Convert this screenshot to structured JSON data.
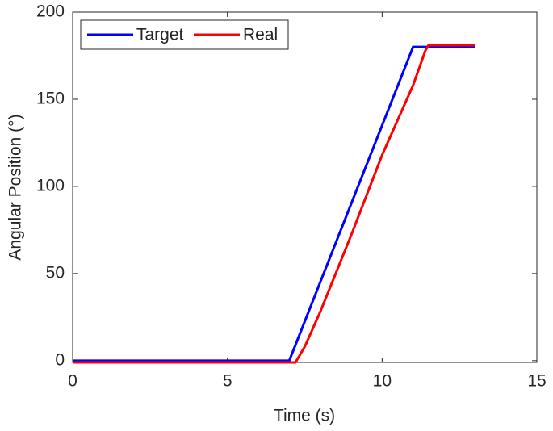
{
  "chart_data": {
    "type": "line",
    "x_label": "Time (s)",
    "y_label": "Angular Position (°)",
    "xlim": [
      0,
      15
    ],
    "xticks": [
      0,
      5,
      10,
      15
    ],
    "ylim": [
      -1,
      200
    ],
    "yticks": [
      0,
      50,
      100,
      150,
      200
    ],
    "legend": "upper-left",
    "series": [
      {
        "name": "Target",
        "color": "#0000ff",
        "x": [
          0,
          7,
          11,
          13
        ],
        "values": [
          0,
          0,
          180,
          180
        ]
      },
      {
        "name": "Real",
        "color": "#ff0000",
        "x": [
          0,
          7.2,
          7.5,
          8,
          8.5,
          9,
          9.5,
          10,
          10.5,
          11,
          11.4,
          11.5,
          13
        ],
        "values": [
          -1,
          -1,
          8,
          28,
          50,
          72,
          95,
          118,
          138,
          158,
          178,
          181,
          181
        ]
      }
    ]
  }
}
